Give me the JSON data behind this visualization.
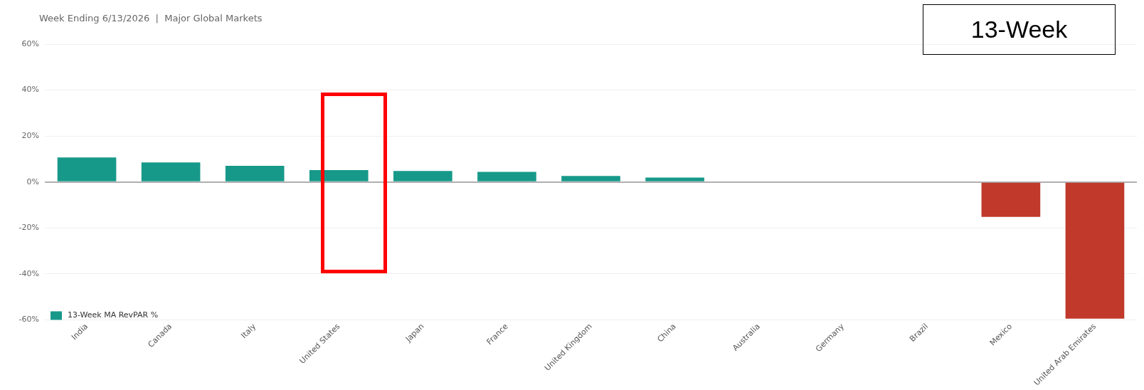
{
  "chart_data": {
    "type": "bar",
    "title": "Week Ending 6/13/2026  |  Major Global Markets",
    "annotations": [
      "13-Week"
    ],
    "categories": [
      "India",
      "Canada",
      "Italy",
      "United States",
      "Japan",
      "France",
      "United Kingdom",
      "China",
      "Australia",
      "Germany",
      "Brazil",
      "Mexico",
      "United Arab Emirates"
    ],
    "series": [
      {
        "name": "13-Week MA RevPAR %",
        "color": "#17998a",
        "colors": [
          "#17998a",
          "#17998a",
          "#17998a",
          "#17998a",
          "#17998a",
          "#17998a",
          "#17998a",
          "#17998a",
          "#17998a",
          "#17998a",
          "#17998a",
          "#c0392b",
          "#c0392b"
        ],
        "values": [
          10.7,
          8.5,
          7,
          5.2,
          4.8,
          4.4,
          2.6,
          1.9,
          null,
          null,
          0,
          -15.2,
          -59.5
        ]
      }
    ],
    "ylim": [
      -60,
      60
    ],
    "yticks": [
      {
        "value": -60,
        "label": "-60%"
      },
      {
        "value": -40,
        "label": "-40%"
      },
      {
        "value": -20,
        "label": "-20%"
      },
      {
        "value": 0,
        "label": "0%"
      },
      {
        "value": 20,
        "label": "20%"
      },
      {
        "value": 40,
        "label": "40%"
      },
      {
        "value": 60,
        "label": "60%"
      }
    ],
    "grid": "y",
    "legend": "bottom left"
  }
}
